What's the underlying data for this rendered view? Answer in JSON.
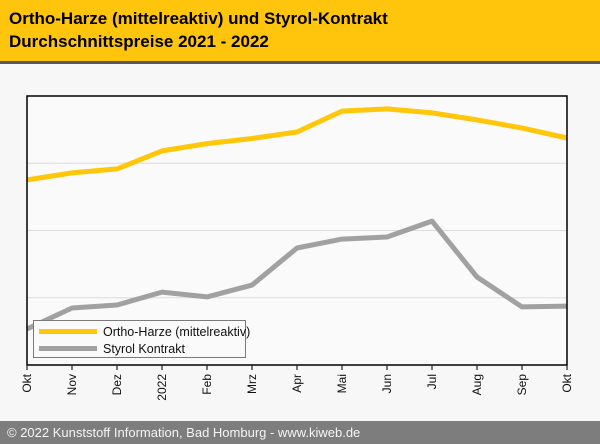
{
  "header": {
    "title_line1": "Ortho-Harze (mittelreaktiv) und Styrol-Kontrakt",
    "title_line2": "Durchschnittspreise 2021 - 2022"
  },
  "footer": {
    "text": "© 2022 Kunststoff Information, Bad Homburg - www.kiweb.de"
  },
  "colors": {
    "header_bg": "#FFC40C",
    "divider": "#58585a",
    "region_bg": "#f7f7f7",
    "plot_bg": "#fafafa",
    "plot_border": "#000000",
    "gridline": "#dcdcdc",
    "tick": "#222222",
    "axis_label_text": "#111111",
    "legend_bg": "#fafafa",
    "legend_border": "#7a7a7a",
    "footer_bg": "#7d7d7d",
    "footer_text": "#f5f5f5"
  },
  "chart_data": {
    "type": "line",
    "title": "Ortho-Harze (mittelreaktiv) und Styrol-Kontrakt Durchschnittspreise 2021 - 2022",
    "xlabel": "",
    "ylabel": "",
    "categories": [
      "Okt",
      "Nov",
      "Dez",
      "2022",
      "Feb",
      "Mrz",
      "Apr",
      "Mai",
      "Jun",
      "Jul",
      "Aug",
      "Sep",
      "Okt"
    ],
    "series": [
      {
        "name": "Ortho-Harze (mittelreaktiv)",
        "color": "#FFC60A",
        "values": [
          68.8,
          71.4,
          72.9,
          79.6,
          82.3,
          84.2,
          86.6,
          94.4,
          95.2,
          93.7,
          91.1,
          88.1,
          84.4
        ]
      },
      {
        "name": "Styrol Kontrakt",
        "color": "#a1a1a1",
        "values": [
          13.4,
          21.2,
          22.3,
          27.1,
          25.3,
          29.7,
          43.5,
          46.8,
          47.6,
          53.5,
          32.7,
          21.6,
          21.9
        ]
      }
    ],
    "ylim": [
      0,
      100
    ],
    "y_axis_labels_visible": false,
    "values_unit": "relative-percent-of-plot-height",
    "gridlines": [
      25,
      50,
      75
    ],
    "grid": "horizontal",
    "legend_position": "bottom-left-inside"
  }
}
